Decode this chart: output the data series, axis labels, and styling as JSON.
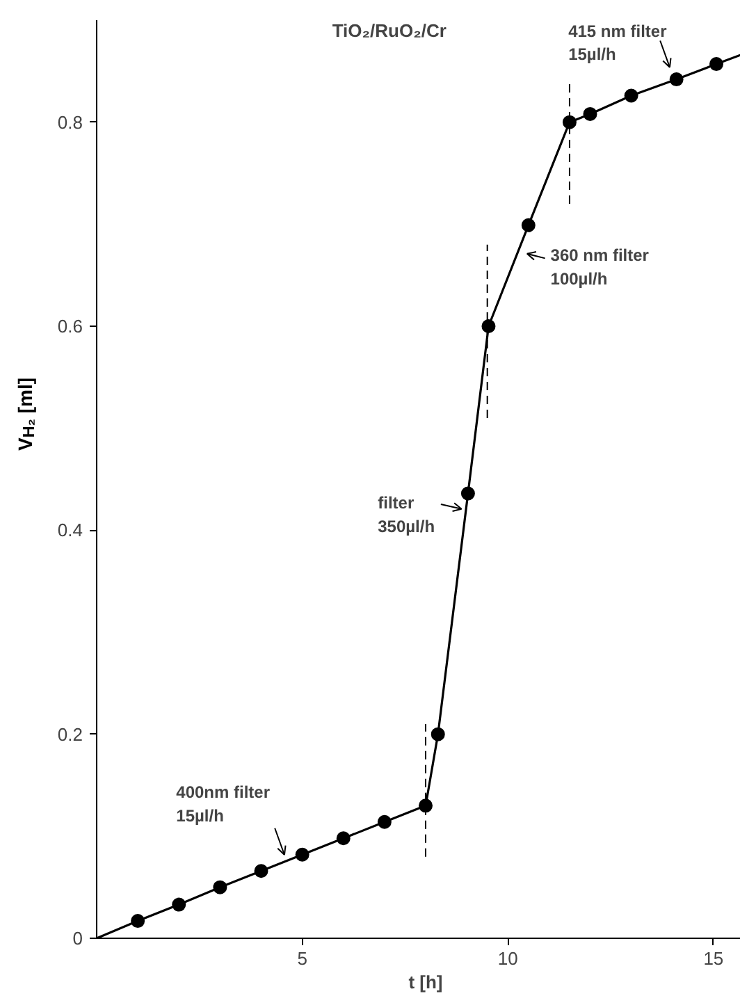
{
  "chart_data": {
    "type": "line",
    "title": "TiO₂/RuO₂/Cr",
    "xlabel": "t [h]",
    "ylabel": "V$_{H₂}$ [ml]",
    "xlim": [
      0,
      16
    ],
    "ylim": [
      0,
      0.9
    ],
    "xticks": [
      5,
      10,
      15
    ],
    "yticks": [
      0,
      0.2,
      0.4,
      0.6,
      0.8
    ],
    "grid": false,
    "series": [
      {
        "color": "#000000",
        "marker": "none",
        "x": [
          0,
          1,
          2,
          3,
          4,
          5,
          6,
          7,
          8,
          8.3,
          9.03,
          9.53,
          10.5,
          11.5,
          12.0,
          13.0,
          14.1,
          15.07,
          16.0
        ],
        "values": [
          0,
          0.017,
          0.033,
          0.05,
          0.066,
          0.082,
          0.098,
          0.114,
          0.13,
          0.2,
          0.436,
          0.6,
          0.699,
          0.8,
          0.808,
          0.826,
          0.842,
          0.857,
          0.871
        ]
      },
      {
        "type": "scatter",
        "color": "#000000",
        "marker": "circle",
        "x": [
          1,
          2,
          3,
          4,
          5,
          6,
          7,
          8,
          8.3,
          9.03,
          9.53,
          10.5,
          11.5,
          12.0,
          13.0,
          14.1,
          15.07
        ],
        "values": [
          0.017,
          0.033,
          0.05,
          0.066,
          0.082,
          0.098,
          0.114,
          0.13,
          0.2,
          0.436,
          0.6,
          0.699,
          0.8,
          0.808,
          0.826,
          0.842,
          0.857
        ]
      },
      {
        "type": "line",
        "color": "#000000",
        "marker": "none",
        "line_style": "dashed",
        "x": [
          8,
          8
        ],
        "values": [
          0.08,
          0.21
        ]
      },
      {
        "type": "line",
        "color": "#000000",
        "marker": "none",
        "line_style": "dashed",
        "x": [
          9.5,
          9.5
        ],
        "values": [
          0.51,
          0.68
        ]
      },
      {
        "type": "line",
        "color": "#000000",
        "marker": "none",
        "line_style": "dashed",
        "x": [
          11.5,
          11.5
        ],
        "values": [
          0.72,
          0.84
        ]
      }
    ],
    "annotations": [
      {
        "text": "400nm filter\n15µl/h",
        "x": 4.6,
        "y": 0.078
      },
      {
        "text": "filter\n350µl/h",
        "x": 8.97,
        "y": 0.42
      },
      {
        "text": "360 nm filter\n100µl/h",
        "x": 10.37,
        "y": 0.672
      },
      {
        "text": "415 nm filter\n15µl/h",
        "x": 13.97,
        "y": 0.85
      }
    ]
  }
}
